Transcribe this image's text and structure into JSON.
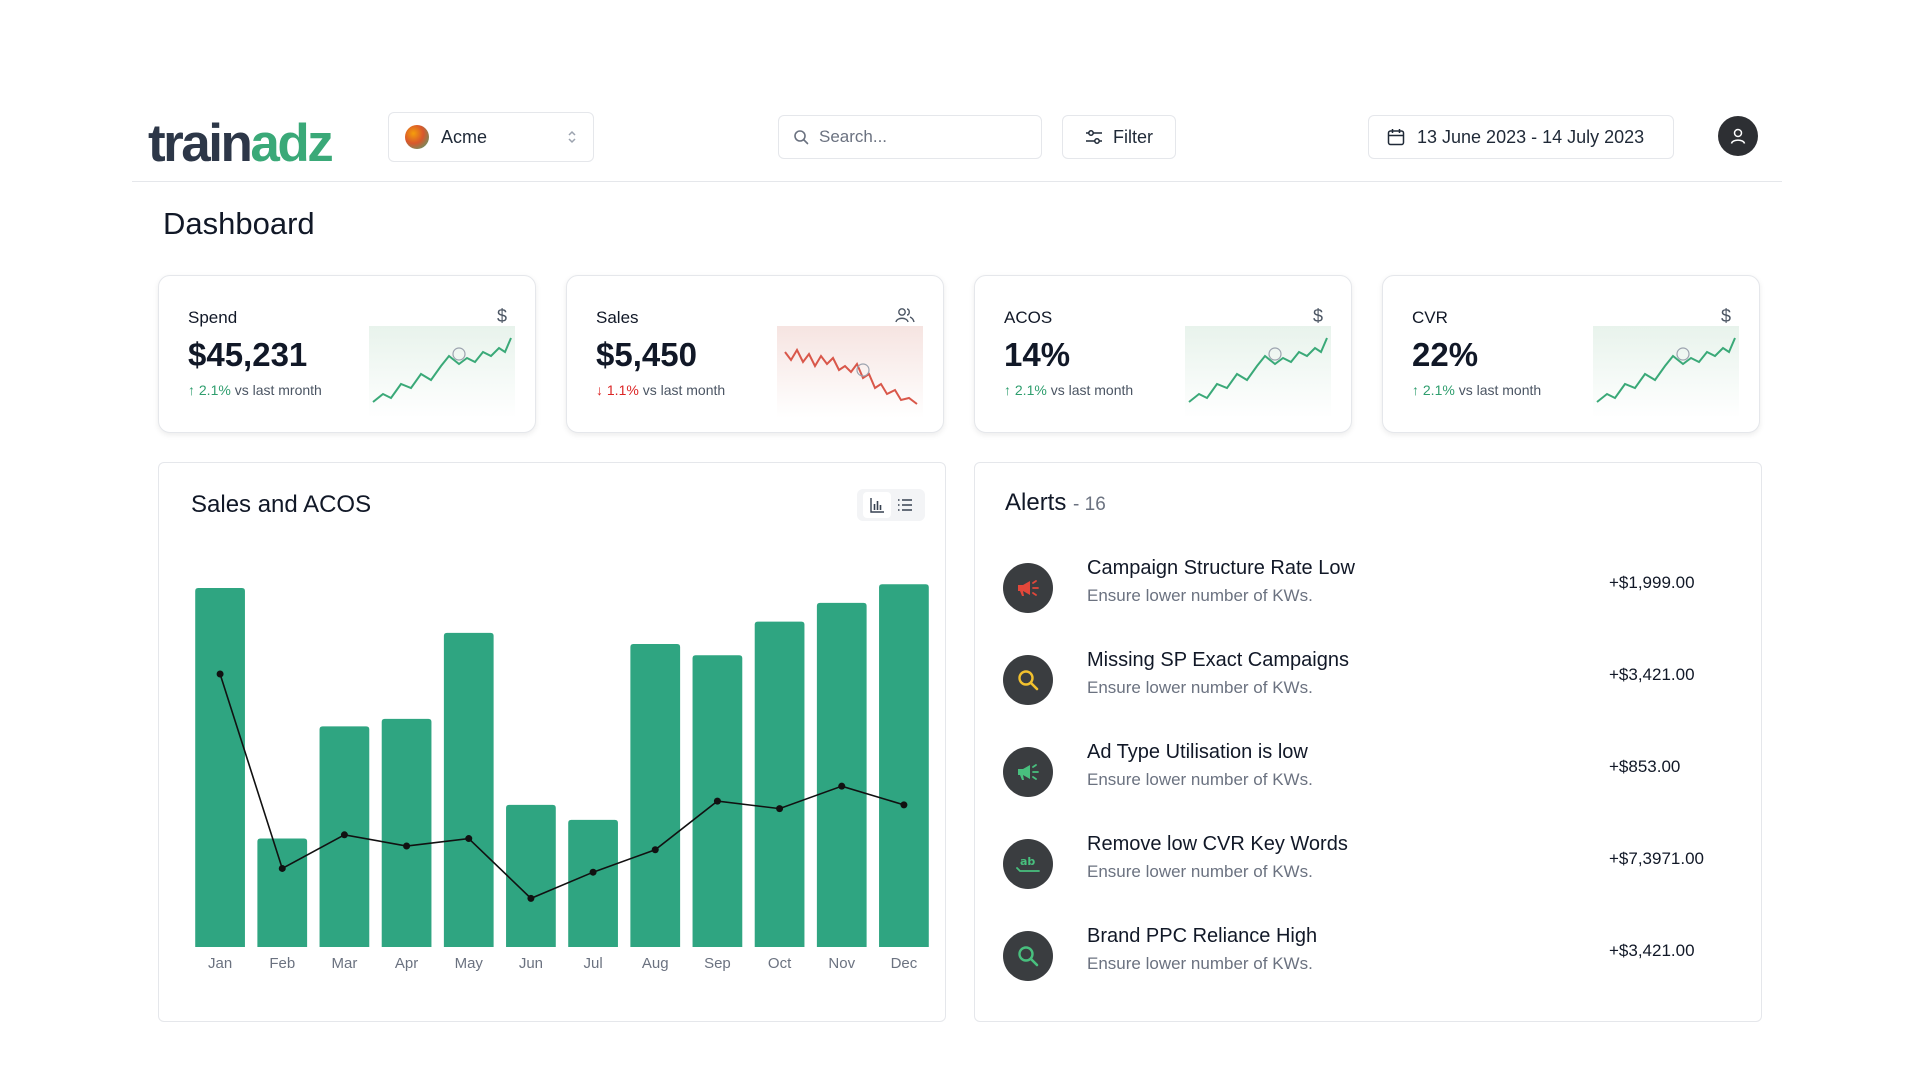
{
  "header": {
    "logo_part1": "train",
    "logo_part2": "adz",
    "org_name": "Acme",
    "search_placeholder": "Search...",
    "filter_label": "Filter",
    "date_range": "13 June 2023 - 14 July 2023"
  },
  "page_title": "Dashboard",
  "kpis": [
    {
      "label": "Spend",
      "icon": "dollar-icon",
      "value": "$45,231",
      "change": "2.1%",
      "change_suffix": "vs last mronth",
      "direction": "up"
    },
    {
      "label": "Sales",
      "icon": "users-icon",
      "value": "$5,450",
      "change": "1.1%",
      "change_suffix": "vs last month",
      "direction": "down"
    },
    {
      "label": "ACOS",
      "icon": "dollar-icon",
      "value": "14%",
      "change": "2.1%",
      "change_suffix": "vs last month",
      "direction": "up"
    },
    {
      "label": "CVR",
      "icon": "dollar-icon",
      "value": "22%",
      "change": "2.1%",
      "change_suffix": "vs last month",
      "direction": "up"
    }
  ],
  "chart": {
    "title": "Sales and ACOS"
  },
  "chart_data": {
    "type": "bar",
    "categories": [
      "Jan",
      "Feb",
      "Mar",
      "Apr",
      "May",
      "Jun",
      "Jul",
      "Aug",
      "Sep",
      "Oct",
      "Nov",
      "Dec"
    ],
    "series": [
      {
        "type": "bar",
        "values": [
          96,
          29,
          59,
          61,
          84,
          38,
          34,
          81,
          78,
          87,
          92,
          97
        ]
      },
      {
        "type": "line",
        "values": [
          73,
          21,
          30,
          27,
          29,
          13,
          20,
          26,
          39,
          37,
          43,
          38
        ]
      }
    ],
    "ylim": [
      0,
      100
    ],
    "colors": {
      "bar": "#2fa581",
      "line": "#111111"
    },
    "grid": false
  },
  "alerts": {
    "title": "Alerts",
    "count_label": "- 16",
    "items": [
      {
        "title": "Campaign Structure Rate Low",
        "description": "Ensure lower number of KWs.",
        "amount": "+$1,999.00",
        "icon": "megaphone-icon",
        "icon_color": "#e2473a"
      },
      {
        "title": "Missing SP Exact Campaigns",
        "description": "Ensure lower number of KWs.",
        "amount": "+$3,421.00",
        "icon": "search-icon",
        "icon_color": "#f2c12e"
      },
      {
        "title": "Ad Type Utilisation is low",
        "description": "Ensure lower number of KWs.",
        "amount": "+$853.00",
        "icon": "megaphone-icon",
        "icon_color": "#48c07e"
      },
      {
        "title": "Remove low CVR Key Words",
        "description": "Ensure lower number of KWs.",
        "amount": "+$7,3971.00",
        "icon": "spellcheck-icon",
        "icon_color": "#48c07e"
      },
      {
        "title": "Brand PPC Reliance High",
        "description": "Ensure lower number of KWs.",
        "amount": "+$3,421.00",
        "icon": "search-icon",
        "icon_color": "#48c07e"
      }
    ]
  }
}
